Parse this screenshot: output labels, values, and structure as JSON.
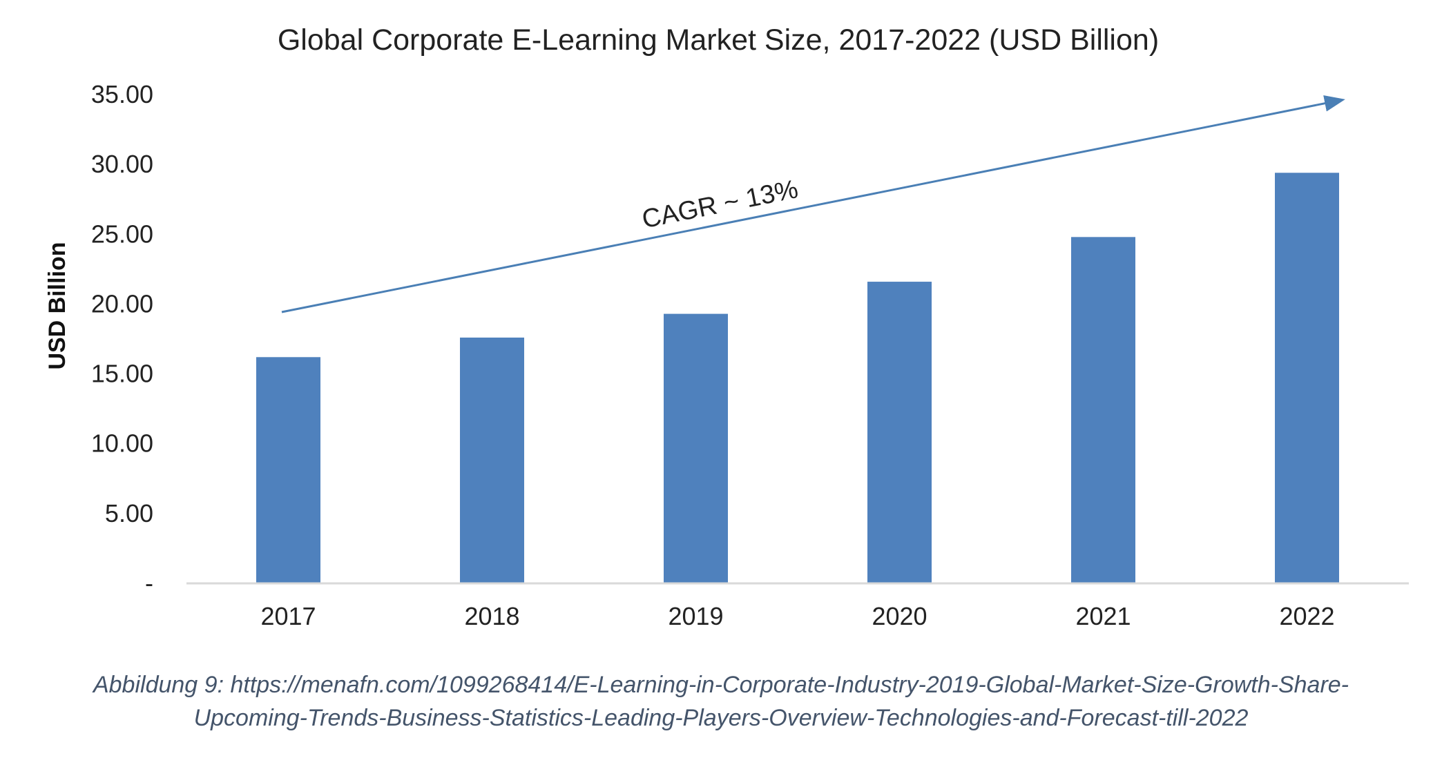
{
  "chart_data": {
    "type": "bar",
    "title": "Global Corporate E-Learning Market Size, 2017-2022 (USD Billion)",
    "xlabel": "",
    "ylabel": "USD  Billion",
    "categories": [
      "2017",
      "2018",
      "2019",
      "2020",
      "2021",
      "2022"
    ],
    "values": [
      16.2,
      17.6,
      19.3,
      21.6,
      24.8,
      29.4
    ],
    "ylim": [
      0,
      35
    ],
    "yticks": [
      0,
      5,
      10,
      15,
      20,
      25,
      30,
      35
    ],
    "ytick_labels": [
      "-",
      "5.00",
      "10.00",
      "15.00",
      "20.00",
      "25.00",
      "30.00",
      "35.00"
    ],
    "grid": false,
    "legend": "none",
    "bar_color": "#4f81bd",
    "annotation": {
      "text": "CAGR ~ 13%",
      "arrow_color": "#4a7fb5"
    }
  },
  "caption": {
    "line1": "Abbildung 9: https://menafn.com/1099268414/E-Learning-in-Corporate-Industry-2019-Global-Market-Size-Growth-Share-",
    "line2": "Upcoming-Trends-Business-Statistics-Leading-Players-Overview-Technologies-and-Forecast-till-2022"
  }
}
